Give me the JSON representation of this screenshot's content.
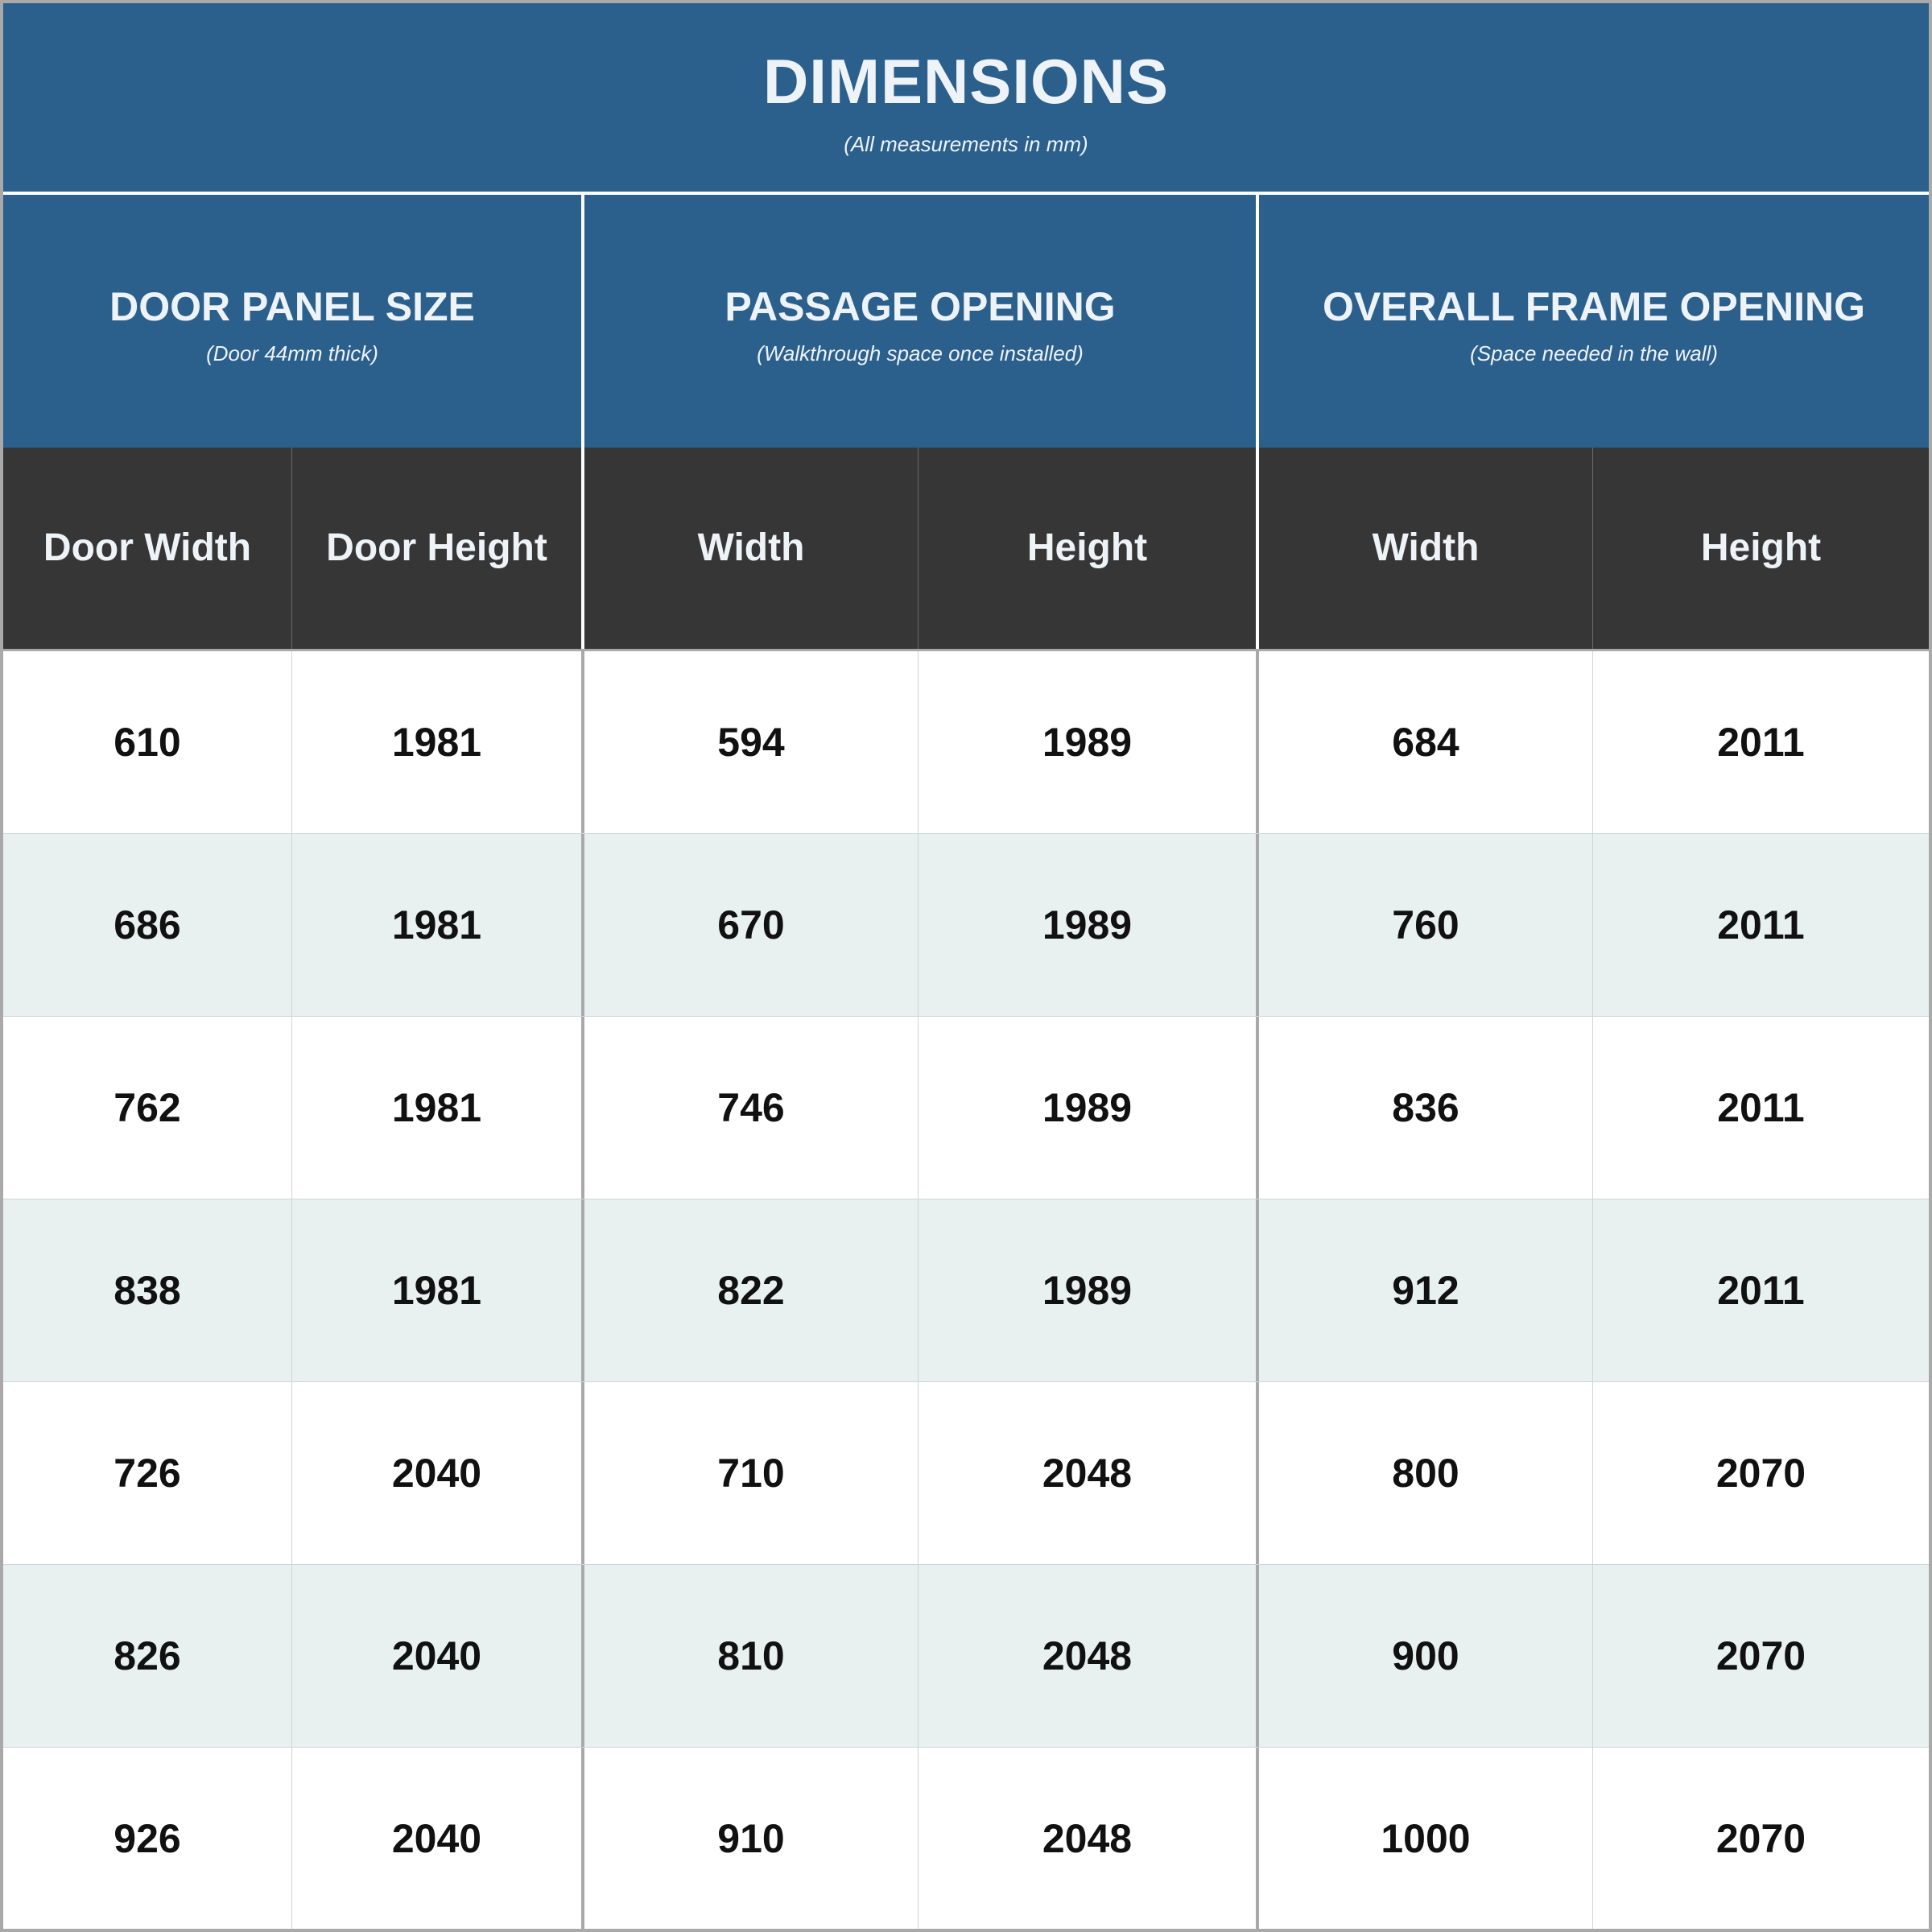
{
  "header": {
    "title": "DIMENSIONS",
    "subtitle": "(All measurements in mm)"
  },
  "groups": [
    {
      "title": "DOOR PANEL SIZE",
      "subtitle": "(Door 44mm thick)"
    },
    {
      "title": "PASSAGE OPENING",
      "subtitle": "(Walkthrough space once installed)"
    },
    {
      "title": "OVERALL FRAME OPENING",
      "subtitle": "(Space needed in the wall)"
    }
  ],
  "columns": [
    "Door Width",
    "Door Height",
    "Width",
    "Height",
    "Width",
    "Height"
  ],
  "rows": [
    [
      "610",
      "1981",
      "594",
      "1989",
      "684",
      "2011"
    ],
    [
      "686",
      "1981",
      "670",
      "1989",
      "760",
      "2011"
    ],
    [
      "762",
      "1981",
      "746",
      "1989",
      "836",
      "2011"
    ],
    [
      "838",
      "1981",
      "822",
      "1989",
      "912",
      "2011"
    ],
    [
      "726",
      "2040",
      "710",
      "2048",
      "800",
      "2070"
    ],
    [
      "826",
      "2040",
      "810",
      "2048",
      "900",
      "2070"
    ],
    [
      "926",
      "2040",
      "910",
      "2048",
      "1000",
      "2070"
    ]
  ],
  "colors": {
    "header_blue": "#2b5f8c",
    "column_header_dark": "#363636",
    "alt_row": "#e8f1f0"
  }
}
